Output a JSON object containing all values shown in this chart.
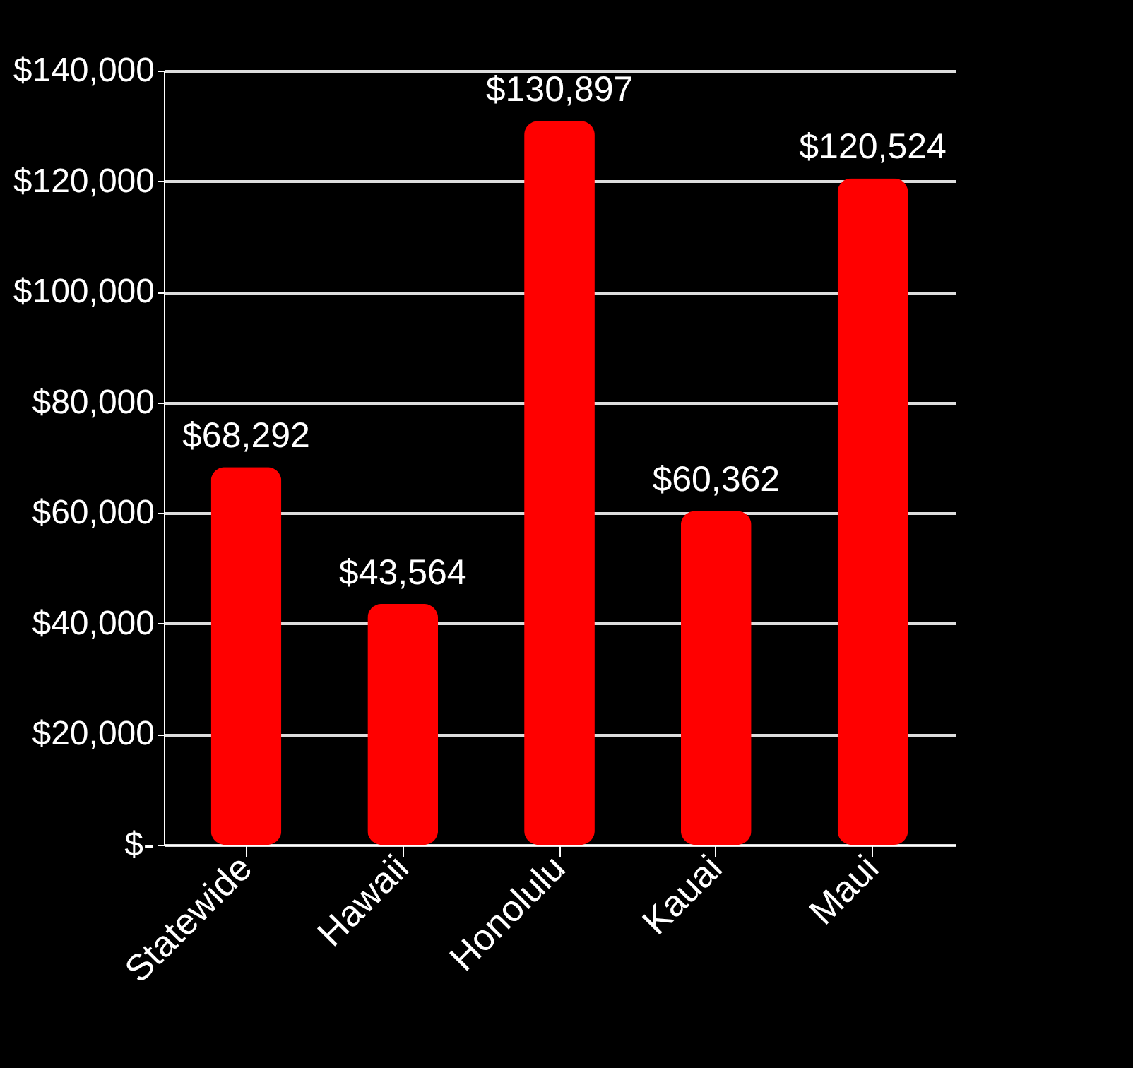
{
  "chart_data": {
    "type": "bar",
    "categories": [
      "Statewide",
      "Hawaii",
      "Honolulu",
      "Kauai",
      "Maui"
    ],
    "values": [
      68292,
      43564,
      130897,
      60362,
      120524
    ],
    "value_labels": [
      "$68,292",
      "$43,564",
      "$130,897",
      "$60,362",
      "$120,524"
    ],
    "color": "#ff0000",
    "ylim": [
      0,
      140000
    ],
    "yticks": [
      {
        "value": 0,
        "label": "$-"
      },
      {
        "value": 20000,
        "label": "$20,000"
      },
      {
        "value": 40000,
        "label": "$40,000"
      },
      {
        "value": 60000,
        "label": "$60,000"
      },
      {
        "value": 80000,
        "label": "$80,000"
      },
      {
        "value": 100000,
        "label": "$100,000"
      },
      {
        "value": 120000,
        "label": "$120,000"
      },
      {
        "value": 140000,
        "label": "$140,000"
      }
    ],
    "grid": true
  }
}
